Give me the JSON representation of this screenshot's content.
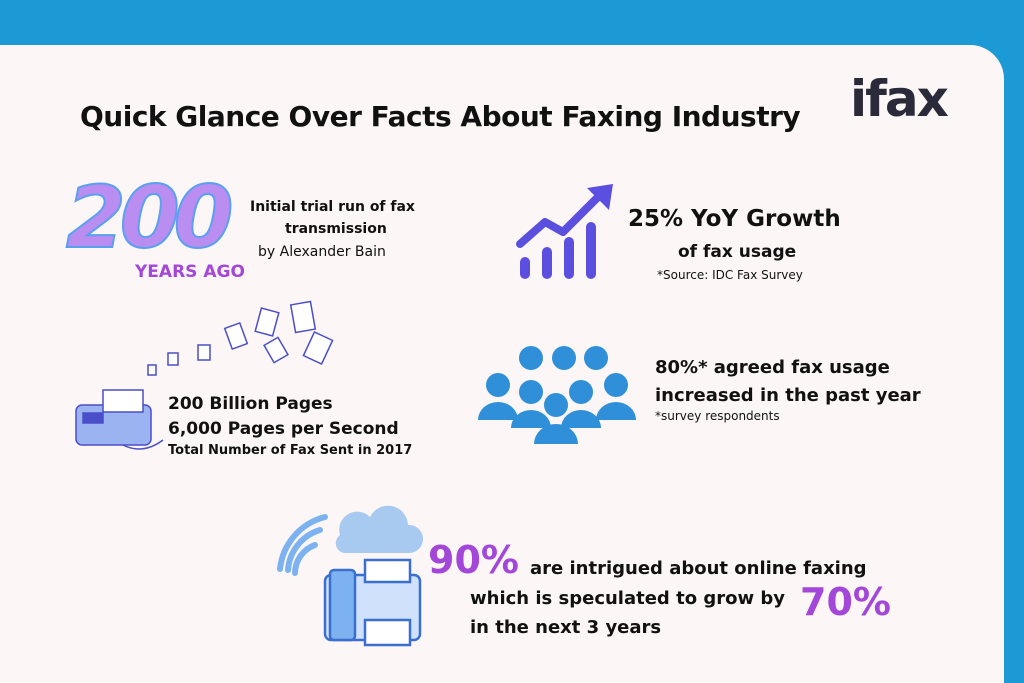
{
  "header": {
    "title": "Quick Glance Over Facts About Faxing Industry",
    "logo": "ifax"
  },
  "facts": [
    {
      "big": "200",
      "tag": "YEARS AGO",
      "lines": [
        "Initial trial run of fax",
        "transmission",
        "by Alexander Bain"
      ]
    },
    {
      "lines": [
        "25% YoY Growth",
        "of fax usage",
        "*Source: IDC Fax Survey"
      ]
    },
    {
      "lines": [
        "200 Billion Pages",
        "6,000 Pages per Second",
        "Total Number of Fax Sent in 2017"
      ]
    },
    {
      "lines": [
        "80%* agreed fax usage",
        "increased in the past year",
        "*survey respondents"
      ]
    },
    {
      "big": "90%",
      "lines": [
        "are intrigued about online faxing",
        "which is speculated to grow by",
        "in the next 3 years"
      ],
      "big2": "70%"
    }
  ]
}
